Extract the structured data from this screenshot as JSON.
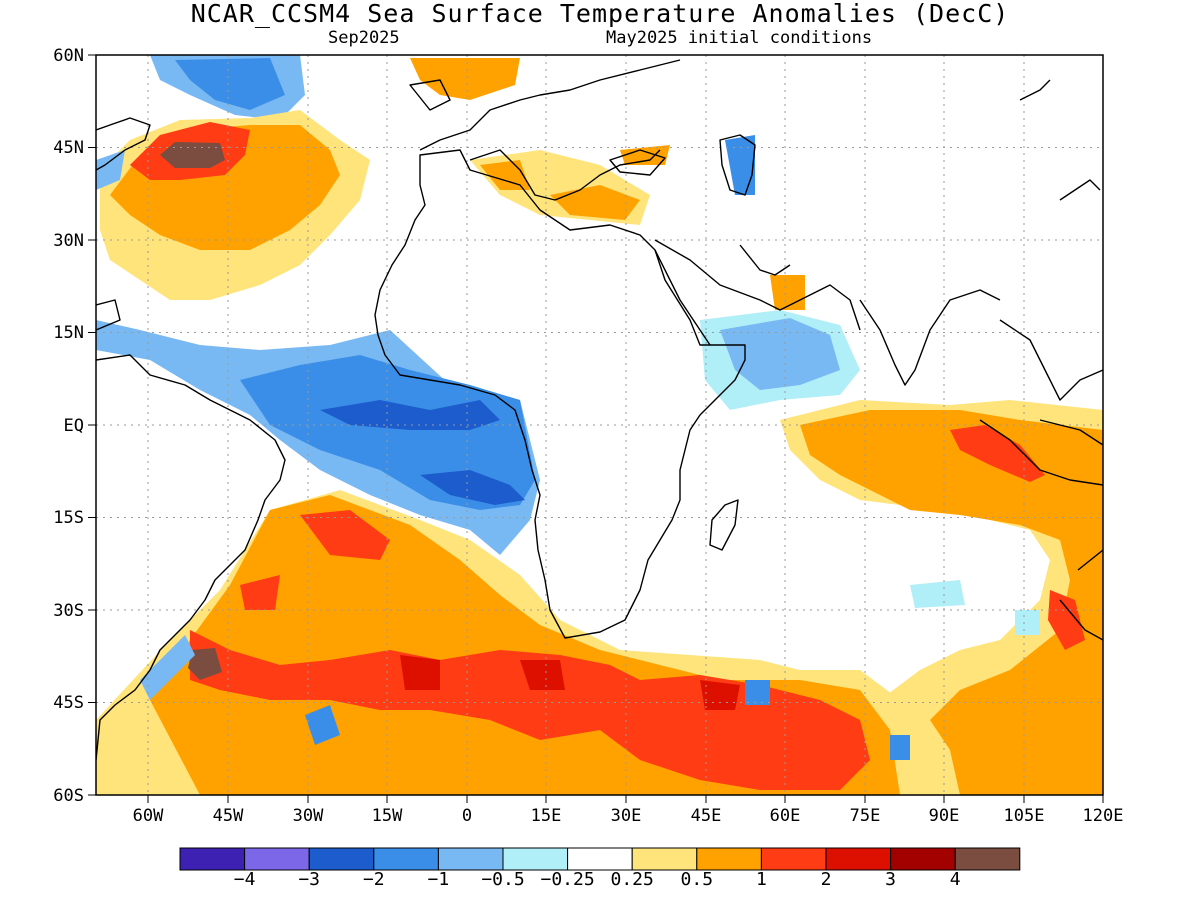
{
  "title": "NCAR_CCSM4 Sea Surface Temperature Anomalies (DecC)",
  "subtitle_left": "Sep2025",
  "subtitle_right": "May2025 initial conditions",
  "lat_labels": [
    "60N",
    "45N",
    "30N",
    "15N",
    "EQ",
    "15S",
    "30S",
    "45S",
    "60S"
  ],
  "lon_labels": [
    "60W",
    "45W",
    "30W",
    "15W",
    "0",
    "15E",
    "30E",
    "45E",
    "60E",
    "75E",
    "90E",
    "105E",
    "120E"
  ],
  "colorbar": {
    "colors": [
      "#3d21b3",
      "#7b67e8",
      "#1c5ccc",
      "#3b8ee8",
      "#78b8f3",
      "#b0eef8",
      "#ffffff",
      "#fee47a",
      "#ffa200",
      "#ff3c14",
      "#dd1000",
      "#a30000",
      "#7a4d40"
    ],
    "labels": [
      "−4",
      "−3",
      "−2",
      "−1",
      "−0.5",
      "−0.25",
      "0.25",
      "0.5",
      "1",
      "2",
      "3",
      "4"
    ]
  },
  "map": {
    "lat_range": [
      -60,
      60
    ],
    "lon_range": [
      -70,
      120
    ]
  }
}
